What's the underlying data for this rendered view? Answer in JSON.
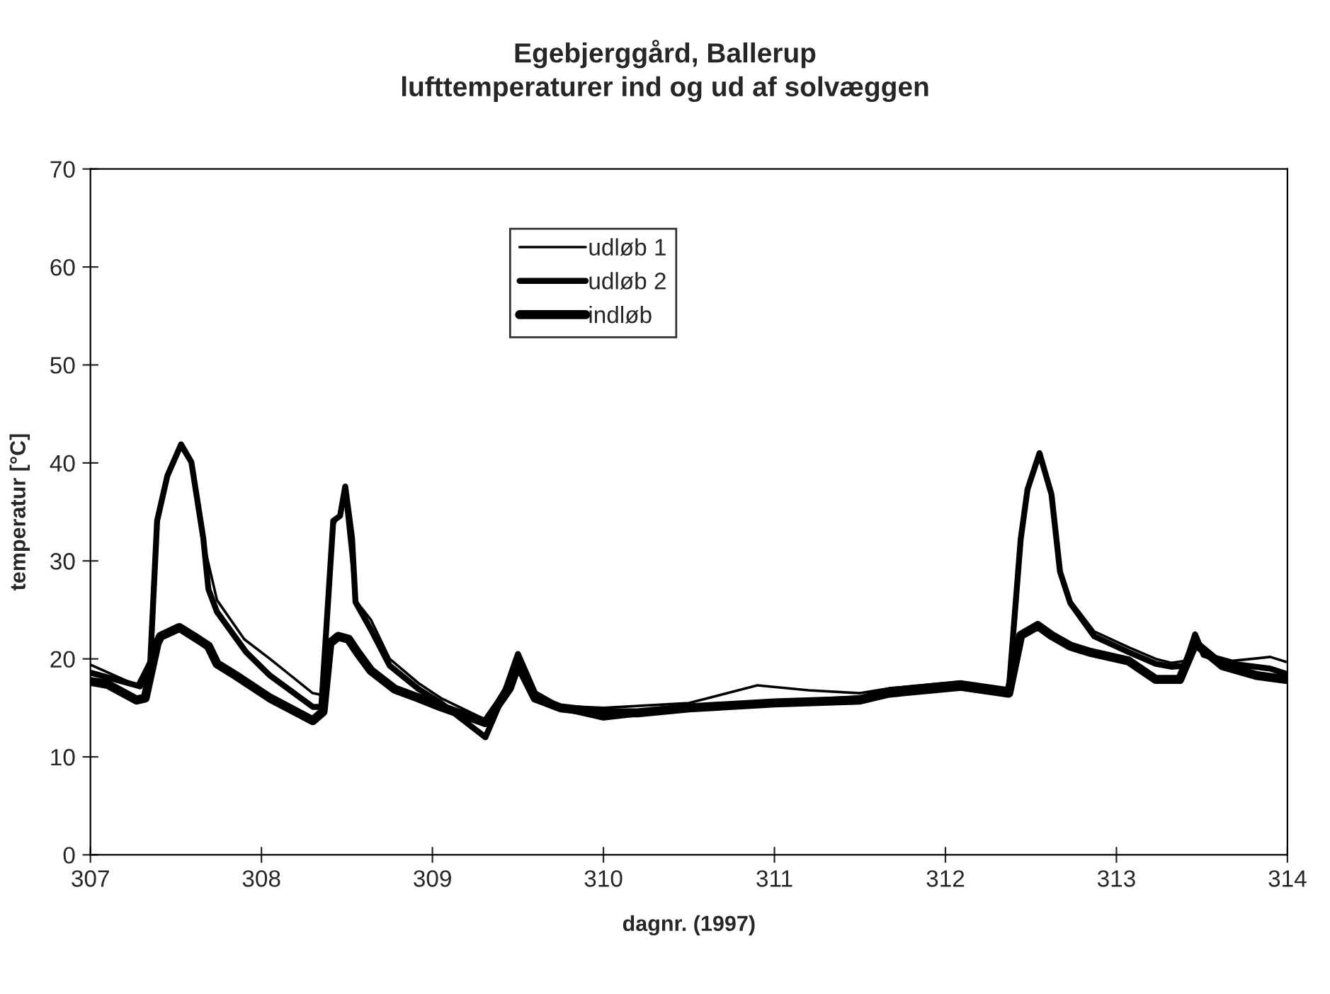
{
  "chart_data": {
    "type": "line",
    "title": "Egebjerggård, Ballerup\nlufttemperaturer ind og ud af solvæggen",
    "xlabel": "dagnr. (1997)",
    "ylabel": "temperatur [°C]",
    "xlim": [
      307,
      314
    ],
    "xticks": [
      307,
      308,
      309,
      310,
      311,
      312,
      313,
      314
    ],
    "ylim": [
      0,
      70
    ],
    "yticks": [
      0,
      10,
      20,
      30,
      40,
      50,
      60,
      70
    ],
    "grid": false,
    "legend": "top",
    "series": [
      {
        "name": "udløb 1",
        "color": "#000000",
        "x": [
          307.0,
          307.27,
          307.35,
          307.39,
          307.45,
          307.53,
          307.59,
          307.66,
          307.74,
          307.9,
          308.05,
          308.3,
          308.36,
          308.42,
          308.49,
          308.55,
          308.64,
          308.75,
          308.92,
          309.05,
          309.31,
          309.42,
          309.5,
          309.6,
          309.75,
          310.0,
          310.5,
          310.9,
          311.2,
          311.5,
          311.67,
          312.09,
          312.37,
          312.44,
          312.48,
          312.55,
          312.62,
          312.67,
          312.73,
          312.87,
          313.07,
          313.23,
          313.32,
          313.4,
          313.46,
          313.51,
          313.68,
          313.9,
          313.99
        ],
        "values": [
          19.4,
          17.3,
          20.0,
          33.5,
          38.3,
          41.5,
          39.8,
          32.0,
          26.0,
          22.0,
          20.0,
          16.5,
          16.3,
          33.5,
          36.0,
          26.0,
          24.0,
          20.0,
          17.5,
          16.0,
          13.8,
          17.0,
          20.0,
          16.5,
          15.2,
          15.0,
          15.5,
          17.3,
          16.8,
          16.5,
          17.0,
          17.7,
          17.0,
          32.0,
          37.0,
          40.6,
          36.5,
          29.0,
          26.0,
          22.8,
          21.2,
          20.0,
          19.6,
          19.8,
          22.0,
          20.6,
          19.8,
          20.2,
          19.7
        ]
      },
      {
        "name": "udløb 2",
        "color": "#000000",
        "x": [
          307.0,
          307.29,
          307.35,
          307.39,
          307.45,
          307.53,
          307.59,
          307.66,
          307.69,
          307.74,
          307.91,
          308.05,
          308.3,
          308.35,
          308.42,
          308.46,
          308.49,
          308.53,
          308.55,
          308.64,
          308.75,
          308.92,
          309.05,
          309.31,
          309.42,
          309.5,
          309.6,
          309.75,
          310.0,
          310.5,
          311.0,
          311.5,
          311.67,
          312.09,
          312.37,
          312.44,
          312.48,
          312.55,
          312.62,
          312.67,
          312.73,
          312.87,
          313.07,
          313.23,
          313.32,
          313.4,
          313.46,
          313.51,
          313.68,
          313.9,
          313.99
        ],
        "values": [
          18.6,
          17.2,
          19.7,
          34.1,
          38.7,
          41.9,
          40.1,
          32.3,
          27.1,
          24.8,
          20.7,
          18.3,
          15.1,
          15.1,
          34.1,
          34.6,
          37.6,
          32.3,
          25.8,
          23.0,
          19.3,
          16.9,
          15.5,
          12.0,
          16.5,
          20.5,
          16.5,
          15.0,
          14.0,
          15.0,
          15.5,
          16.0,
          16.8,
          17.5,
          16.7,
          32.2,
          37.3,
          41.0,
          36.8,
          28.9,
          25.7,
          22.3,
          20.7,
          19.5,
          19.2,
          19.3,
          22.5,
          20.4,
          19.5,
          19.0,
          18.5
        ]
      },
      {
        "name": "indløb",
        "color": "#000000",
        "x": [
          307.0,
          307.1,
          307.27,
          307.32,
          307.39,
          307.41,
          307.52,
          307.63,
          307.69,
          307.74,
          307.85,
          308.05,
          308.3,
          308.36,
          308.4,
          308.45,
          308.51,
          308.56,
          308.64,
          308.78,
          308.92,
          309.05,
          309.31,
          309.45,
          309.5,
          309.6,
          309.75,
          310.0,
          310.2,
          310.5,
          311.0,
          311.5,
          311.67,
          312.09,
          312.37,
          312.44,
          312.54,
          312.62,
          312.73,
          312.84,
          313.07,
          313.23,
          313.37,
          313.46,
          313.62,
          313.82,
          313.99
        ],
        "values": [
          17.7,
          17.4,
          15.8,
          16.0,
          21.6,
          22.3,
          23.2,
          22.0,
          21.3,
          19.5,
          18.3,
          16.0,
          13.7,
          14.6,
          21.6,
          22.3,
          22.0,
          20.7,
          18.8,
          16.9,
          16.0,
          15.1,
          13.5,
          17.0,
          19.5,
          16.0,
          15.0,
          14.5,
          14.5,
          15.0,
          15.5,
          15.8,
          16.5,
          17.2,
          16.5,
          22.4,
          23.4,
          22.4,
          21.3,
          20.7,
          19.8,
          17.9,
          17.9,
          21.6,
          19.3,
          18.3,
          17.9
        ]
      }
    ]
  }
}
